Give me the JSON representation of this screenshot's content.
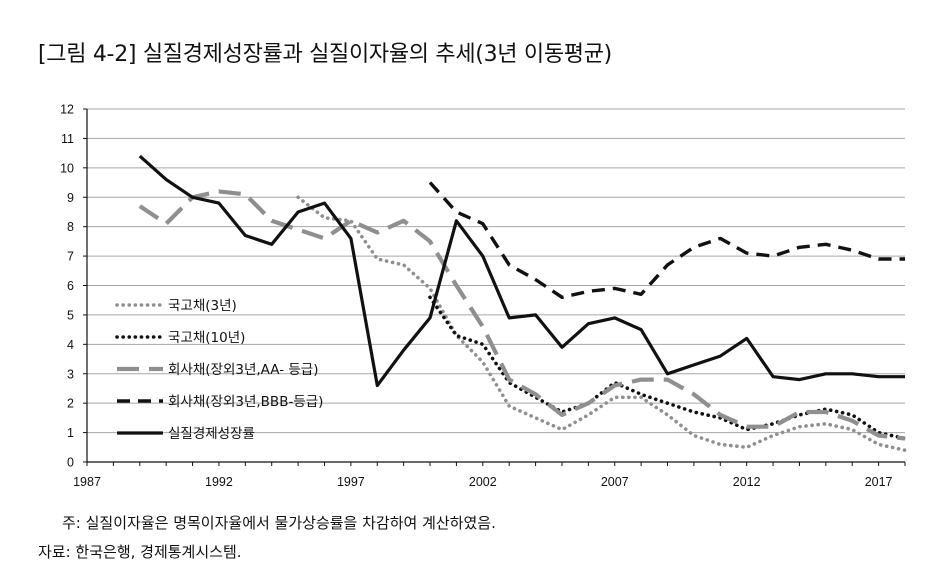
{
  "title": "[그림 4-2] 실질경제성장률과 실질이자율의 추세(3년 이동평균)",
  "note": "주: 실질이자율은 명목이자율에서 물가상승률을 차감하여 계산하였음.",
  "source": "자료: 한국은행, 경제통계시스템.",
  "chart_data": {
    "type": "line",
    "title": "[그림 4-2] 실질경제성장률과 실질이자율의 추세(3년 이동평균)",
    "xlabel": "",
    "ylabel": "",
    "xlim": [
      1987,
      2018
    ],
    "ylim": [
      0,
      12
    ],
    "xticks": [
      1987,
      1992,
      1997,
      2002,
      2007,
      2012,
      2017
    ],
    "yticks": [
      0,
      1,
      2,
      3,
      4,
      5,
      6,
      7,
      8,
      9,
      10,
      11,
      12
    ],
    "grid": "horizontal",
    "legend_position": "left",
    "series": [
      {
        "name": "국고채(3년)",
        "style": "dotted-grey",
        "color": "#8c8c8c",
        "x": [
          1995,
          1996,
          1997,
          1998,
          1999,
          2000,
          2001,
          2002,
          2003,
          2004,
          2005,
          2006,
          2007,
          2008,
          2009,
          2010,
          2011,
          2012,
          2013,
          2014,
          2015,
          2016,
          2017,
          2018
        ],
        "y": [
          9.0,
          8.3,
          8.2,
          6.9,
          6.7,
          5.9,
          4.3,
          3.4,
          1.9,
          1.5,
          1.1,
          1.6,
          2.2,
          2.2,
          1.6,
          0.9,
          0.6,
          0.5,
          0.9,
          1.2,
          1.3,
          1.1,
          0.6,
          0.4
        ]
      },
      {
        "name": "국고채(10년)",
        "style": "dotted-black",
        "color": "#111111",
        "x": [
          2000,
          2001,
          2002,
          2003,
          2004,
          2005,
          2006,
          2007,
          2008,
          2009,
          2010,
          2011,
          2012,
          2013,
          2014,
          2015,
          2016,
          2017,
          2018
        ],
        "y": [
          5.6,
          4.3,
          4.0,
          2.7,
          2.2,
          1.7,
          2.0,
          2.7,
          2.3,
          2.0,
          1.7,
          1.5,
          1.1,
          1.3,
          1.6,
          1.8,
          1.6,
          1.0,
          0.8
        ]
      },
      {
        "name": "회사채(장외3년,AA- 등급)",
        "style": "long-dash-grey",
        "color": "#8c8c8c",
        "x": [
          1989,
          1990,
          1991,
          1992,
          1993,
          1994,
          1995,
          1996,
          1997,
          1998,
          1999,
          2000,
          2001,
          2002,
          2003,
          2004,
          2005,
          2006,
          2007,
          2008,
          2009,
          2010,
          2011,
          2012,
          2013,
          2014,
          2015,
          2016,
          2017,
          2018
        ],
        "y": [
          8.7,
          8.1,
          9.0,
          9.2,
          9.1,
          8.2,
          7.9,
          7.6,
          8.2,
          7.8,
          8.2,
          7.5,
          6.0,
          4.6,
          2.8,
          2.3,
          1.6,
          2.0,
          2.6,
          2.8,
          2.8,
          2.3,
          1.6,
          1.2,
          1.2,
          1.7,
          1.7,
          1.4,
          0.9,
          0.8
        ]
      },
      {
        "name": "회사채(장외3년,BBB-등급)",
        "style": "dash-black",
        "color": "#111111",
        "x": [
          2000,
          2001,
          2002,
          2003,
          2004,
          2005,
          2006,
          2007,
          2008,
          2009,
          2010,
          2011,
          2012,
          2013,
          2014,
          2015,
          2016,
          2017,
          2018
        ],
        "y": [
          9.5,
          8.5,
          8.1,
          6.7,
          6.2,
          5.6,
          5.8,
          5.9,
          5.7,
          6.7,
          7.3,
          7.6,
          7.1,
          7.0,
          7.3,
          7.4,
          7.2,
          6.9,
          6.9
        ]
      },
      {
        "name": "실질경제성장률",
        "style": "solid-black",
        "color": "#111111",
        "x": [
          1989,
          1990,
          1991,
          1992,
          1993,
          1994,
          1995,
          1996,
          1997,
          1998,
          1999,
          2000,
          2001,
          2002,
          2003,
          2004,
          2005,
          2006,
          2007,
          2008,
          2009,
          2010,
          2011,
          2012,
          2013,
          2014,
          2015,
          2016,
          2017,
          2018
        ],
        "y": [
          10.4,
          9.6,
          9.0,
          8.8,
          7.7,
          7.4,
          8.5,
          8.8,
          7.6,
          2.6,
          3.8,
          4.9,
          8.2,
          7.0,
          4.9,
          5.0,
          3.9,
          4.7,
          4.9,
          4.5,
          3.0,
          3.3,
          3.6,
          4.2,
          2.9,
          2.8,
          3.0,
          3.0,
          2.9,
          2.9
        ]
      }
    ]
  }
}
